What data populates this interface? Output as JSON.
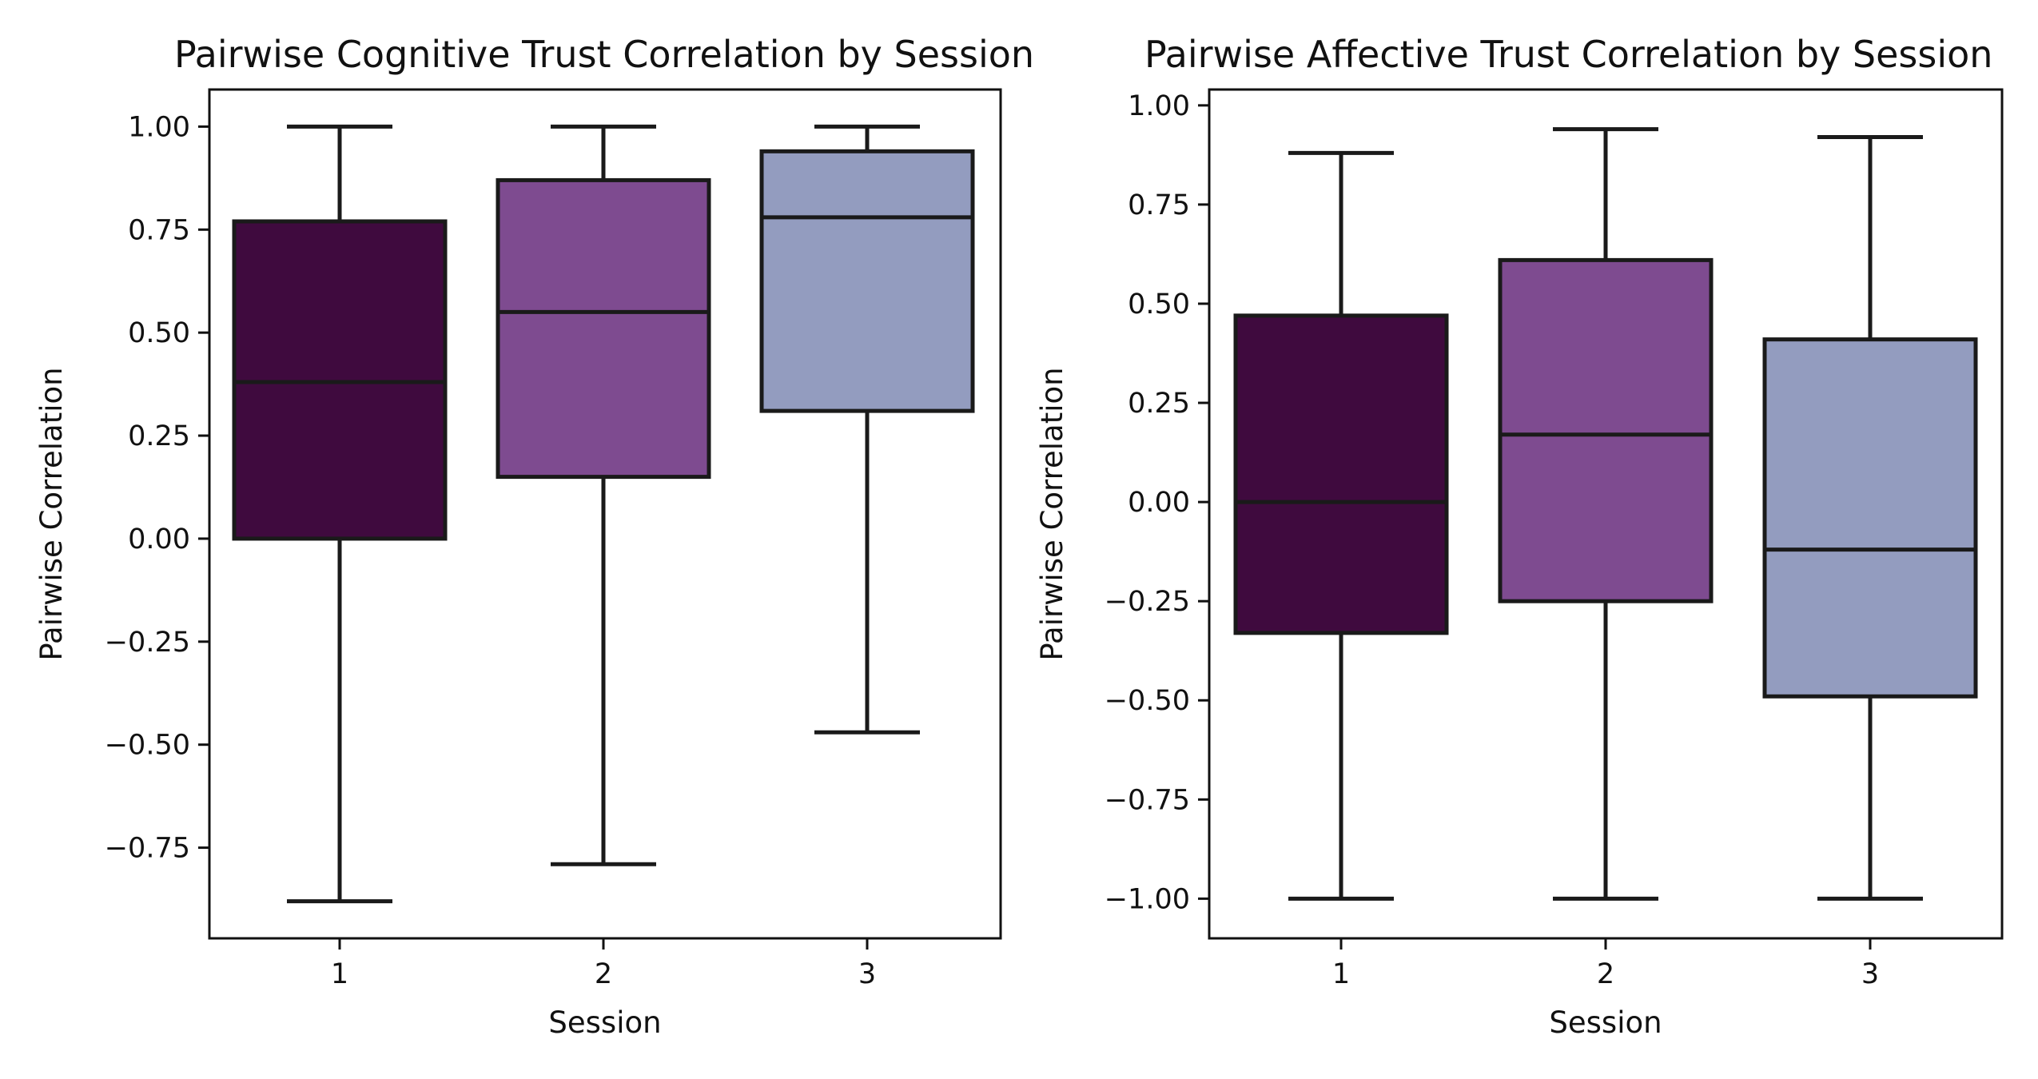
{
  "chart_data": [
    {
      "type": "box",
      "title": "Pairwise Cognitive Trust Correlation by Session",
      "xlabel": "Session",
      "ylabel": "Pairwise Correlation",
      "categories": [
        "1",
        "2",
        "3"
      ],
      "ylim": [
        -0.97,
        1.09
      ],
      "yticks": [
        1.0,
        0.75,
        0.5,
        0.25,
        0.0,
        -0.25,
        -0.5,
        -0.75
      ],
      "ytick_labels": [
        "1.00",
        "0.75",
        "0.50",
        "0.25",
        "0.00",
        "−0.25",
        "−0.50",
        "−0.75"
      ],
      "colors": [
        "#3f0a3e",
        "#7e4b90",
        "#939cbf"
      ],
      "boxes": [
        {
          "category": "1",
          "whisker_low": -0.88,
          "q1": 0.0,
          "median": 0.38,
          "q3": 0.77,
          "whisker_high": 1.0
        },
        {
          "category": "2",
          "whisker_low": -0.79,
          "q1": 0.15,
          "median": 0.55,
          "q3": 0.87,
          "whisker_high": 1.0
        },
        {
          "category": "3",
          "whisker_low": -0.47,
          "q1": 0.31,
          "median": 0.78,
          "q3": 0.94,
          "whisker_high": 1.0
        }
      ]
    },
    {
      "type": "box",
      "title": "Pairwise Affective Trust Correlation by Session",
      "xlabel": "Session",
      "ylabel": "Pairwise Correlation",
      "categories": [
        "1",
        "2",
        "3"
      ],
      "ylim": [
        -1.1,
        1.04
      ],
      "yticks": [
        1.0,
        0.75,
        0.5,
        0.25,
        0.0,
        -0.25,
        -0.5,
        -0.75,
        -1.0
      ],
      "ytick_labels": [
        "1.00",
        "0.75",
        "0.50",
        "0.25",
        "0.00",
        "−0.25",
        "−0.50",
        "−0.75",
        "−1.00"
      ],
      "colors": [
        "#3f0a3e",
        "#7e4b90",
        "#939cbf"
      ],
      "boxes": [
        {
          "category": "1",
          "whisker_low": -1.0,
          "q1": -0.33,
          "median": 0.0,
          "q3": 0.47,
          "whisker_high": 0.88
        },
        {
          "category": "2",
          "whisker_low": -1.0,
          "q1": -0.25,
          "median": 0.17,
          "q3": 0.61,
          "whisker_high": 0.94
        },
        {
          "category": "3",
          "whisker_low": -1.0,
          "q1": -0.49,
          "median": -0.12,
          "q3": 0.41,
          "whisker_high": 0.92
        }
      ]
    }
  ]
}
